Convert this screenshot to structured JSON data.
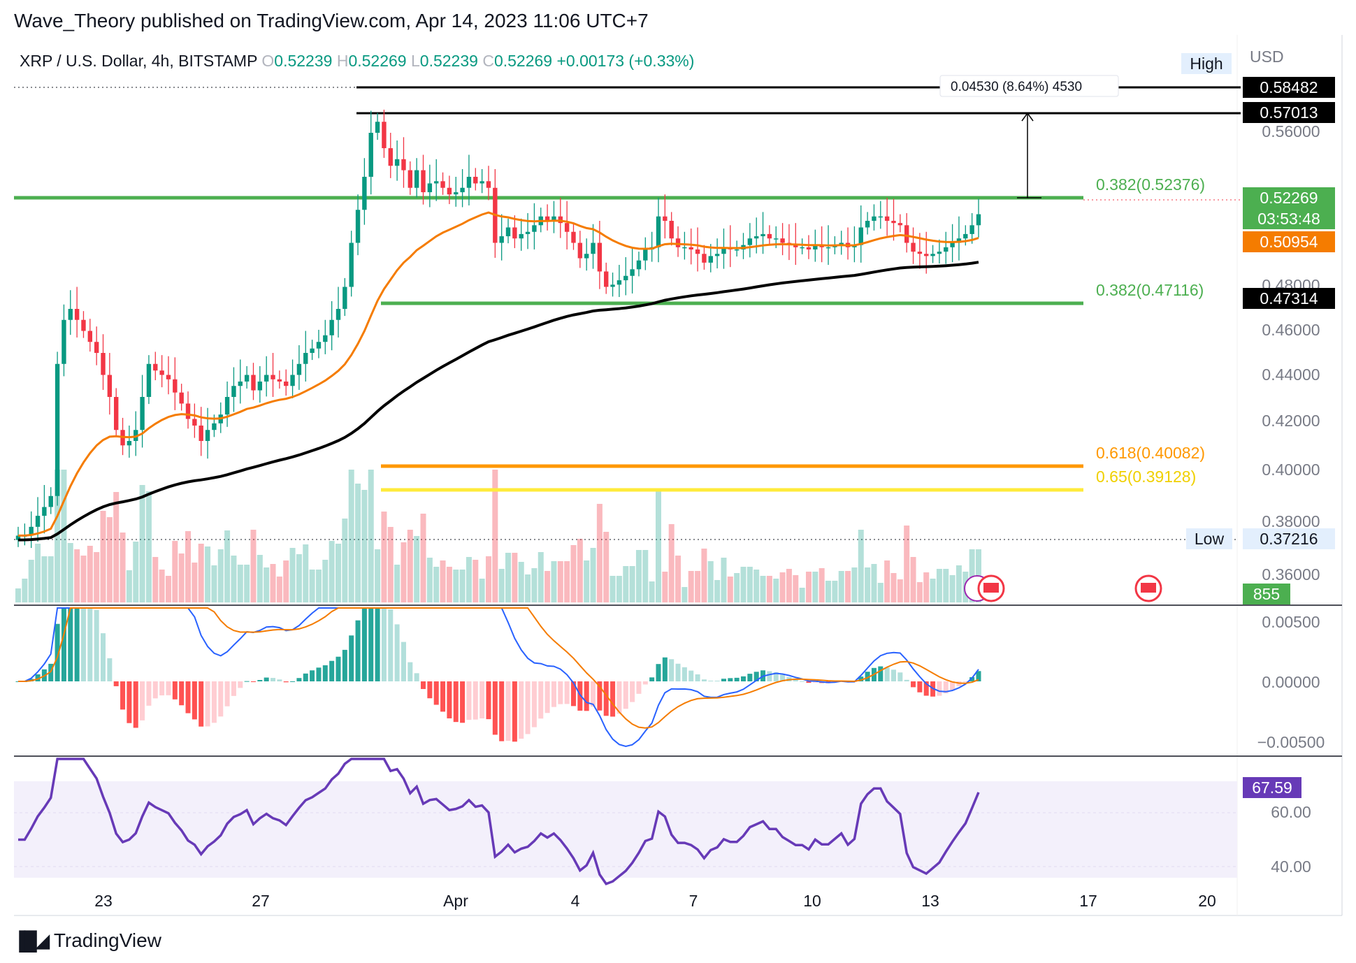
{
  "header": {
    "published_by": "Wave_Theory published on TradingView.com, Apr 14, 2023 11:06 UTC+7"
  },
  "symbol": {
    "name": "XRP / U.S. Dollar, 4h, BITSTAMP",
    "o_label": "O",
    "o": "0.52239",
    "h_label": "H",
    "h": "0.52269",
    "l_label": "L",
    "l": "0.52239",
    "c_label": "C",
    "c": "0.52269",
    "change": "+0.00173 (+0.33%)"
  },
  "currency": "USD",
  "measure_label": "0.04530 (8.64%) 4530",
  "fib_labels": {
    "f1": "0.382(0.52376)",
    "f2": "0.382(0.47116)",
    "f3": "0.618(0.40082)",
    "f4": "0.65(0.39128)"
  },
  "price_labels": {
    "high_tag": "High",
    "high_value": "0.58482",
    "level_57": "0.57013",
    "last_price": "0.52269",
    "countdown": "03:53:48",
    "ema50": "0.50954",
    "ema200": "0.47314",
    "low_tag": "Low",
    "low_value": "0.37216",
    "volume": "855",
    "rsi": "67.59"
  },
  "colors": {
    "up": "#089981",
    "down": "#f23645",
    "ema_orange": "#f57c00",
    "fib_green": "#4caf50",
    "fib_orange": "#ff9800",
    "fib_yellow": "#ffeb3b",
    "macd_blue": "#2962ff",
    "rsi_purple": "#673ab7"
  },
  "footer": {
    "brand": "TradingView"
  },
  "chart_data": [
    {
      "type": "candlestick",
      "title": "XRP / U.S. Dollar, 4h, BITSTAMP",
      "y_ticks": [
        "0.56000",
        "0.48000",
        "0.46000",
        "0.44000",
        "0.42000",
        "0.40000",
        "0.38000",
        "0.36000"
      ],
      "x_ticks": [
        "23",
        "27",
        "Apr",
        "4",
        "7",
        "10",
        "13",
        "17",
        "20"
      ],
      "close_series": [
        0.377,
        0.377,
        0.381,
        0.386,
        0.39,
        0.395,
        0.455,
        0.475,
        0.48,
        0.475,
        0.47,
        0.465,
        0.46,
        0.45,
        0.44,
        0.425,
        0.418,
        0.42,
        0.425,
        0.44,
        0.455,
        0.452,
        0.45,
        0.448,
        0.442,
        0.437,
        0.43,
        0.427,
        0.42,
        0.425,
        0.428,
        0.432,
        0.44,
        0.445,
        0.447,
        0.45,
        0.443,
        0.447,
        0.45,
        0.448,
        0.447,
        0.445,
        0.45,
        0.455,
        0.46,
        0.462,
        0.465,
        0.468,
        0.475,
        0.48,
        0.49,
        0.51,
        0.525,
        0.54,
        0.56,
        0.565,
        0.553,
        0.545,
        0.548,
        0.543,
        0.535,
        0.543,
        0.533,
        0.537,
        0.538,
        0.535,
        0.532,
        0.533,
        0.535,
        0.54,
        0.537,
        0.538,
        0.535,
        0.51,
        0.513,
        0.517,
        0.512,
        0.514,
        0.515,
        0.518,
        0.522,
        0.52,
        0.522,
        0.519,
        0.515,
        0.51,
        0.503,
        0.505,
        0.51,
        0.497,
        0.49,
        0.491,
        0.493,
        0.495,
        0.498,
        0.502,
        0.507,
        0.508,
        0.522,
        0.52,
        0.512,
        0.508,
        0.508,
        0.507,
        0.505,
        0.501,
        0.504,
        0.505,
        0.508,
        0.507,
        0.507,
        0.509,
        0.512,
        0.513,
        0.514,
        0.512,
        0.512,
        0.51,
        0.509,
        0.508,
        0.508,
        0.507,
        0.509,
        0.508,
        0.508,
        0.509,
        0.51,
        0.508,
        0.509,
        0.517,
        0.52,
        0.522,
        0.522,
        0.52,
        0.519,
        0.518,
        0.51,
        0.506,
        0.505,
        0.504,
        0.505,
        0.506,
        0.508,
        0.51,
        0.512,
        0.514,
        0.518,
        0.523
      ],
      "ema50_last": 0.50954,
      "ema200_last": 0.47314,
      "high": 0.58482,
      "low": 0.37216,
      "fib_levels": [
        {
          "label": "0.382(0.52376)",
          "value": 0.52376
        },
        {
          "label": "0.382(0.47116)",
          "value": 0.47116
        },
        {
          "label": "0.618(0.40082)",
          "value": 0.40082
        },
        {
          "label": "0.65(0.39128)",
          "value": 0.39128
        }
      ],
      "horizontal_levels": [
        0.58482,
        0.57013
      ]
    },
    {
      "type": "bar",
      "title": "MACD",
      "y_ticks": [
        "0.00500",
        "0.00000",
        "−0.00500"
      ]
    },
    {
      "type": "line",
      "title": "RSI",
      "y_ticks": [
        "60.00",
        "40.00"
      ],
      "last": 67.59
    }
  ]
}
